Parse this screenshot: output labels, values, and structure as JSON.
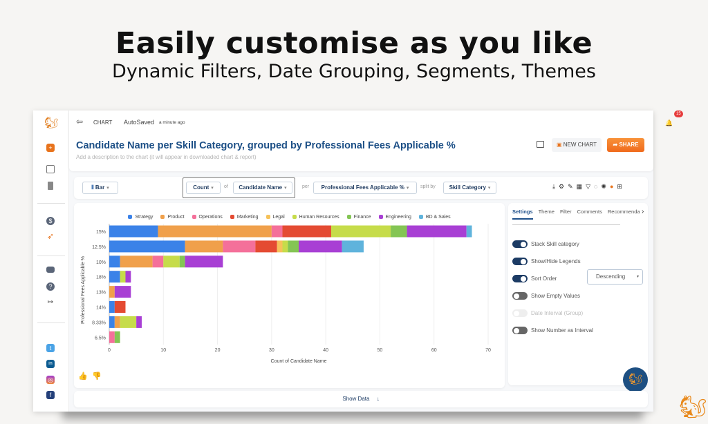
{
  "hero": {
    "title": "Easily customise as you like",
    "subtitle": "Dynamic Filters, Date Grouping, Segments, Themes"
  },
  "header": {
    "section": "CHART",
    "autosaved": "AutoSaved",
    "autosaved_time": "a minute ago",
    "notifications": "15",
    "title": "Candidate Name per Skill Category, grouped by Professional Fees Applicable %",
    "description_placeholder": "Add a description to the chart (it will appear in downloaded chart & report)",
    "new_chart": "NEW CHART",
    "share": "SHARE"
  },
  "toolbar": {
    "chart_type": "Bar",
    "aggregate": "Count",
    "of_label": "of",
    "field": "Candidate Name",
    "per_label": "per",
    "group": "Professional Fees Applicable %",
    "split_label": "split by",
    "split": "Skill Category"
  },
  "settings": {
    "tabs": [
      "Settings",
      "Theme",
      "Filter",
      "Comments",
      "Recommenda"
    ],
    "rows": [
      {
        "label": "Stack Skill category",
        "state": "on"
      },
      {
        "label": "Show/Hide Legends",
        "state": "on"
      },
      {
        "label": "Sort Order",
        "state": "on"
      },
      {
        "label": "Show Empty Values",
        "state": "off"
      },
      {
        "label": "Date Interval (Group)",
        "state": "disabled"
      },
      {
        "label": "Show Number as Interval",
        "state": "off"
      }
    ],
    "sort_value": "Descending"
  },
  "footer": {
    "show_data": "Show Data"
  },
  "chart_data": {
    "type": "bar",
    "orientation": "horizontal",
    "stacked": true,
    "xlabel": "Count of Candidate Name",
    "ylabel": "Professional Fees Applicable %",
    "xlim": [
      0,
      70
    ],
    "xticks": [
      "0",
      "10",
      "20",
      "30",
      "40",
      "50",
      "60",
      "70"
    ],
    "categories": [
      "15%",
      "12.5%",
      "10%",
      "18%",
      "13%",
      "14%",
      "8.33%",
      "6.5%"
    ],
    "series": [
      {
        "name": "Strategy",
        "color": "#3b82e8",
        "values": [
          9,
          14,
          2,
          2,
          0,
          1,
          1,
          0
        ]
      },
      {
        "name": "Product",
        "color": "#f0a04b",
        "values": [
          21,
          7,
          6,
          0,
          1,
          0,
          1,
          0
        ]
      },
      {
        "name": "Operations",
        "color": "#f4709a",
        "values": [
          2,
          6,
          2,
          0,
          0,
          0,
          0,
          1
        ]
      },
      {
        "name": "Marketing",
        "color": "#e44b32",
        "values": [
          9,
          4,
          0,
          0,
          0,
          2,
          0,
          0
        ]
      },
      {
        "name": "Legal",
        "color": "#f6c25a",
        "values": [
          0,
          1,
          0,
          0,
          0,
          0,
          0,
          0
        ]
      },
      {
        "name": "Human Resources",
        "color": "#c6dc4a",
        "values": [
          11,
          1,
          3,
          1,
          0,
          0,
          3,
          0
        ]
      },
      {
        "name": "Finance",
        "color": "#84c554",
        "values": [
          3,
          2,
          1,
          0,
          0,
          0,
          0,
          1
        ]
      },
      {
        "name": "Engineering",
        "color": "#a83fd4",
        "values": [
          11,
          8,
          7,
          1,
          3,
          0,
          1,
          0
        ]
      },
      {
        "name": "BD & Sales",
        "color": "#5fb3dc",
        "values": [
          1,
          4,
          0,
          0,
          0,
          0,
          0,
          0
        ]
      }
    ],
    "legend_position": "top",
    "grid": true
  }
}
